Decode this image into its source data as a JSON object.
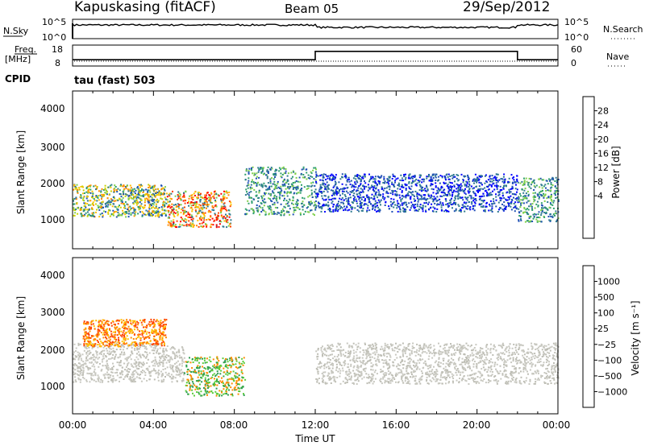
{
  "header": {
    "station": "Kapuskasing (fitACF)",
    "beam": "Beam 05",
    "date": "29/Sep/2012"
  },
  "noise_panel": {
    "left_label": "N.Sky",
    "left_ticks": [
      "10^5",
      "10^0"
    ],
    "right_ticks": [
      "10^5",
      "10^0"
    ],
    "right_label": "N.Search"
  },
  "freq_panel": {
    "left_label_1": "Freq.",
    "left_label_2": "[MHz]",
    "left_ticks": [
      "18",
      "8"
    ],
    "right_ticks": [
      "60",
      "0"
    ],
    "right_label": "Nave",
    "cpid_label": "CPID",
    "cpid_value": "tau (fast) 503",
    "freq_series": [
      [
        0,
        11
      ],
      [
        12,
        11
      ],
      [
        12,
        15
      ],
      [
        22,
        15
      ],
      [
        22,
        11
      ],
      [
        24,
        11
      ]
    ]
  },
  "power_panel": {
    "ylabel": "Slant Range [km]",
    "yticks": [
      "4000",
      "3000",
      "2000",
      "1000"
    ],
    "colorbar_label": "Power [dB]",
    "colorbar_ticks": [
      "28",
      "24",
      "20",
      "16",
      "12",
      "8",
      "4"
    ],
    "colorbar_colors": [
      "#ff0000",
      "#ff4500",
      "#ff8c00",
      "#ffc000",
      "#c8d200",
      "#7fd04a",
      "#2e9e6e",
      "#2e7a8e",
      "#1e50b4",
      "#0000ff"
    ]
  },
  "velocity_panel": {
    "ylabel": "Slant Range [km]",
    "yticks": [
      "4000",
      "3000",
      "2000",
      "1000"
    ],
    "colorbar_label": "Velocity [m s⁻¹]",
    "colorbar_ticks": [
      "1000",
      "500",
      "100",
      "25",
      "−25",
      "−100",
      "−500",
      "−1000"
    ],
    "colorbar_colors": [
      "#1e3cb4",
      "#2e7a9e",
      "#2e9e4e",
      "#5ccc3c",
      "#c8c8c0",
      "#ffc000",
      "#ff8c00",
      "#ff4500",
      "#ff0000"
    ]
  },
  "xaxis": {
    "ticks": [
      "00:00",
      "04:00",
      "08:00",
      "12:00",
      "16:00",
      "20:00",
      "00:00"
    ],
    "label": "Time UT"
  },
  "chart_data": {
    "type": "heatmap",
    "xlabel": "Time UT",
    "ylabel": "Slant Range [km]",
    "xlim": [
      0,
      24
    ],
    "ylim": [
      0,
      4600
    ],
    "power_regions": [
      {
        "t0": 0.0,
        "t1": 4.6,
        "r0": 950,
        "r1": 1900,
        "level": "high"
      },
      {
        "t0": 4.6,
        "t1": 7.8,
        "r0": 650,
        "r1": 1700,
        "level": "very-high"
      },
      {
        "t0": 8.5,
        "t1": 12.0,
        "r0": 1000,
        "r1": 2400,
        "level": "medium"
      },
      {
        "t0": 12.0,
        "t1": 22.0,
        "r0": 1100,
        "r1": 2200,
        "level": "low"
      },
      {
        "t0": 22.0,
        "t1": 24.0,
        "r0": 800,
        "r1": 2100,
        "level": "medium"
      }
    ],
    "velocity_regions": [
      {
        "t0": 0.0,
        "t1": 5.5,
        "r0": 950,
        "r1": 2100,
        "level": "ground-scatter"
      },
      {
        "t0": 5.5,
        "t1": 8.5,
        "r0": 550,
        "r1": 1700,
        "level": "positive"
      },
      {
        "t0": 0.5,
        "t1": 4.6,
        "r0": 2000,
        "r1": 2800,
        "level": "negative"
      },
      {
        "t0": 12.0,
        "t1": 24.0,
        "r0": 900,
        "r1": 2100,
        "level": "ground-scatter"
      }
    ]
  }
}
